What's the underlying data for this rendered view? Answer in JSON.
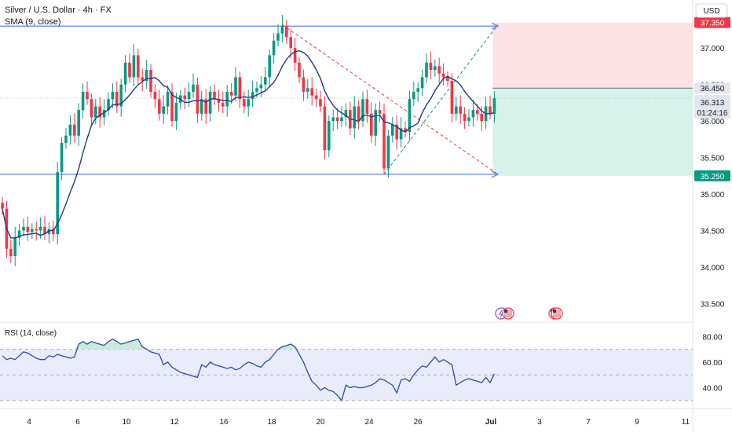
{
  "header": {
    "title": "Silver / U.S. Dollar · 4h · FX",
    "indicator": "SMA (9, close)",
    "currency": "USD"
  },
  "rsi_panel": {
    "label": "RSI (14, close)",
    "ticks": [
      "80.00",
      "60.00",
      "40.00"
    ]
  },
  "price_axis": {
    "ticks": [
      "37.000",
      "36.500",
      "36.000",
      "35.500",
      "35.000",
      "34.500",
      "34.000",
      "33.500"
    ],
    "badges": {
      "stop": "37.350",
      "entry": "36.450",
      "last": "36.313",
      "countdown": "01:24:16",
      "target": "35.250"
    }
  },
  "time_axis": {
    "labels": [
      "4",
      "6",
      "10",
      "12",
      "16",
      "18",
      "20",
      "24",
      "26",
      "Jul",
      "3",
      "7",
      "9",
      "11"
    ]
  },
  "colors": {
    "up": "#089981",
    "down": "#f23645",
    "sma": "#1e3a8a",
    "rsi": "#2a4aa8",
    "rsi_band": "#e8ecfb",
    "levels": "#5b86e5",
    "stop_zone": "#fde2e4",
    "target_zone": "#d6f2ea"
  },
  "chart_data": {
    "type": "candlestick",
    "symbol": "Silver / U.S. Dollar",
    "timeframe": "4h",
    "ylim": [
      33.3,
      37.55
    ],
    "horizontal_levels": [
      37.3,
      35.27
    ],
    "position": {
      "entry": 36.45,
      "stop": 37.35,
      "target": 35.25,
      "last": 36.313
    },
    "sma_period": 9,
    "closes": [
      34.8,
      34.25,
      34.15,
      34.4,
      34.5,
      34.55,
      34.48,
      34.52,
      34.5,
      34.55,
      34.45,
      34.52,
      34.45,
      35.3,
      35.7,
      35.8,
      35.95,
      35.8,
      36.15,
      36.4,
      36.3,
      36.05,
      36.2,
      36.05,
      36.15,
      36.3,
      36.4,
      36.2,
      36.5,
      36.8,
      36.6,
      36.9,
      36.6,
      36.55,
      36.7,
      36.4,
      36.3,
      36.1,
      36.2,
      36.4,
      36.0,
      36.25,
      36.35,
      36.3,
      36.4,
      36.5,
      36.1,
      36.3,
      36.1,
      36.4,
      36.3,
      36.25,
      36.2,
      36.4,
      36.35,
      36.6,
      36.3,
      36.2,
      36.3,
      36.4,
      36.45,
      36.5,
      36.6,
      36.9,
      37.1,
      37.2,
      37.3,
      37.15,
      37.0,
      36.8,
      36.6,
      36.4,
      36.45,
      36.35,
      36.3,
      36.2,
      35.6,
      36.0,
      36.05,
      36.0,
      36.05,
      36.15,
      35.9,
      36.2,
      36.0,
      36.3,
      36.1,
      35.8,
      36.15,
      36.1,
      35.35,
      35.8,
      35.95,
      35.75,
      35.9,
      35.85,
      36.3,
      36.4,
      36.45,
      36.6,
      36.8,
      36.7,
      36.75,
      36.65,
      36.6,
      36.55,
      36.1,
      36.2,
      36.1,
      36.0,
      36.05,
      36.15,
      36.1,
      36.0,
      36.2,
      36.1,
      36.313
    ],
    "rsi_period": 14,
    "rsi": [
      65,
      62,
      63,
      62,
      65,
      68,
      67,
      65,
      63,
      62,
      62,
      65,
      64,
      66,
      65,
      64,
      63,
      64,
      74,
      76,
      74,
      76,
      75,
      74,
      73,
      76,
      78,
      76,
      74,
      75,
      76,
      77,
      78,
      72,
      70,
      68,
      67,
      66,
      58,
      60,
      56,
      54,
      52,
      51,
      50,
      49,
      48,
      58,
      56,
      60,
      58,
      57,
      56,
      55,
      56,
      54,
      55,
      58,
      60,
      59,
      57,
      56,
      60,
      62,
      66,
      70,
      72,
      73,
      74,
      72,
      66,
      60,
      52,
      45,
      42,
      38,
      40,
      38,
      37,
      34,
      30,
      42,
      40,
      41,
      40,
      40,
      41,
      42,
      44,
      47,
      46,
      44,
      42,
      36,
      46,
      47,
      45,
      50,
      54,
      57,
      56,
      60,
      64,
      60,
      62,
      60,
      58,
      42,
      44,
      46,
      47,
      46,
      45,
      44,
      48,
      44,
      51
    ],
    "rsi_levels": [
      70,
      50,
      30
    ],
    "rsi_ylim": [
      25,
      90
    ]
  }
}
